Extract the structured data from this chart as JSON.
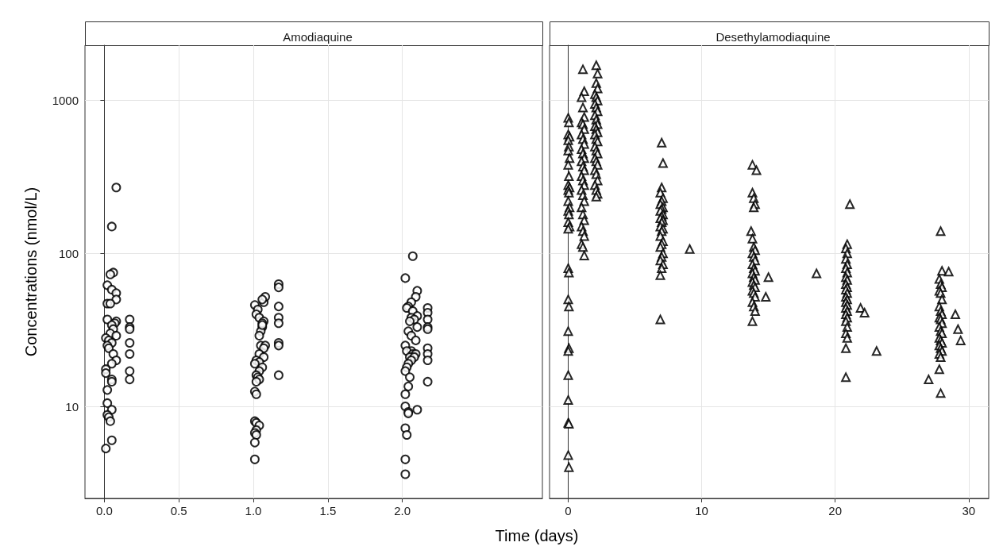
{
  "chart_data": [
    {
      "type": "scatter",
      "title": "Amodiaquine",
      "xlabel": "Time (days)",
      "ylabel": "Concentrations (nmol/L)",
      "marker": "circle",
      "grid": true,
      "log": "y",
      "xlim": [
        -0.13,
        2.94
      ],
      "xticks": [
        {
          "value": 0,
          "label": "0.0"
        },
        {
          "value": 0.5,
          "label": "0.5"
        },
        {
          "value": 1,
          "label": "1.0"
        },
        {
          "value": 1.5,
          "label": "1.5"
        },
        {
          "value": 2,
          "label": "2.0"
        }
      ],
      "ylim": [
        2.5,
        2300
      ],
      "yticks": [
        10,
        100,
        1000
      ],
      "series": [
        {
          "color": "#000000",
          "x": [
            0.08,
            0.05,
            0.06,
            0.04,
            0.02,
            0.05,
            0.08,
            0.08,
            0.02,
            0.04,
            0.02,
            0.08,
            0.07,
            0.05,
            0.06,
            0.04,
            0.08,
            0.01,
            0.03,
            0.05,
            0.02,
            0.03,
            0.06,
            0.08,
            0.05,
            0.01,
            0.01,
            0.05,
            0.05,
            0.02,
            0.02,
            0.05,
            0.02,
            0.03,
            0.04,
            0.05,
            0.01,
            0.17,
            0.17,
            0.17,
            0.17,
            0.17,
            0.17,
            0.17,
            1.01,
            1.03,
            1.02,
            1.04,
            1.06,
            1.05,
            1.07,
            1.08,
            1.06,
            1.07,
            1.06,
            1.06,
            1.04,
            1.05,
            1.08,
            1.07,
            1.04,
            1.07,
            1.02,
            1.04,
            1.01,
            1.06,
            1.04,
            1.02,
            1.03,
            1.04,
            1.02,
            1.01,
            1.02,
            1.01,
            1.02,
            1.04,
            1.02,
            1.01,
            1.02,
            1.01,
            1.01,
            1.17,
            1.17,
            1.17,
            1.17,
            1.17,
            1.17,
            1.17,
            1.17,
            2.07,
            2.02,
            2.1,
            2.09,
            2.06,
            2.04,
            2.03,
            2.07,
            2.1,
            2.06,
            2.08,
            2.05,
            2.1,
            2.04,
            2.06,
            2.09,
            2.02,
            2.06,
            2.03,
            2.07,
            2.09,
            2.05,
            2.08,
            2.06,
            2.04,
            2.03,
            2.02,
            2.05,
            2.04,
            2.02,
            2.02,
            2.1,
            2.04,
            2.04,
            2.02,
            2.03,
            2.02,
            2.02,
            2.17,
            2.17,
            2.17,
            2.17,
            2.17,
            2.17,
            2.17,
            2.17,
            2.17
          ],
          "values": [
            270,
            150,
            75,
            73,
            62,
            58,
            55,
            50,
            47,
            47,
            37,
            36,
            35,
            34,
            32,
            30,
            29,
            28,
            27,
            26,
            25,
            24,
            22,
            20,
            19,
            17.5,
            16.5,
            15,
            14.5,
            12.8,
            10.5,
            9.5,
            8.8,
            8.5,
            8,
            6,
            5.3,
            37,
            33,
            32,
            26,
            22,
            17,
            15,
            46,
            43,
            40,
            38,
            33,
            31,
            48,
            52,
            50,
            36,
            35,
            34,
            29,
            25,
            25,
            24,
            22,
            21,
            20,
            19.5,
            19,
            18,
            17,
            16,
            15.5,
            15,
            14.5,
            12.5,
            12,
            8,
            7.8,
            7.5,
            7,
            6.7,
            6.5,
            5.8,
            4.5,
            63,
            60,
            45,
            38,
            35,
            26,
            25,
            16,
            96,
            69,
            57,
            52,
            48,
            45,
            44,
            42,
            39,
            38,
            37,
            36,
            33,
            31,
            29,
            27,
            25,
            23,
            23,
            22,
            22,
            21,
            21,
            20,
            19,
            18,
            17,
            15.5,
            13.5,
            12,
            10,
            9.5,
            9.2,
            9,
            7.2,
            6.5,
            4.5,
            3.6,
            44,
            41,
            37,
            33,
            32,
            24,
            22,
            20,
            14.5
          ]
        }
      ]
    },
    {
      "type": "scatter",
      "title": "Desethylamodiaquine",
      "marker": "triangle",
      "grid": true,
      "log": "y",
      "tick_labels": "x",
      "xlim": [
        -1.4,
        31.5
      ],
      "xticks": [
        0,
        10,
        20,
        30
      ],
      "ylim": [
        2.5,
        2300
      ],
      "yticks": [
        10,
        100,
        1000
      ],
      "series": [
        {
          "color": "#000000",
          "x": [
            0,
            0.05,
            0,
            0.1,
            0,
            0.05,
            0,
            0.1,
            0,
            0.05,
            0,
            0.1,
            0,
            0.05,
            0,
            0.1,
            0,
            0.05,
            0,
            0.1,
            0,
            0,
            0.05,
            0,
            0.05,
            0,
            0.05,
            0,
            0,
            0,
            0,
            0.05,
            0,
            0.05,
            1.1,
            1.2,
            1,
            1.1,
            1.2,
            1,
            1.1,
            1.2,
            1,
            1.1,
            1.2,
            1,
            1.1,
            1.2,
            1,
            1.1,
            1.2,
            1,
            1.1,
            1.2,
            1,
            1.1,
            1.2,
            1,
            1.1,
            1.2,
            1,
            1.1,
            1.2,
            1,
            1.1,
            1.2,
            2.1,
            2.2,
            2.1,
            2.2,
            2,
            2.1,
            2.2,
            2,
            2.1,
            2.2,
            2,
            2.1,
            2.2,
            2,
            2.1,
            2.2,
            2,
            2.1,
            2.2,
            2,
            2.1,
            2.2,
            2,
            2.1,
            2.2,
            2,
            2.1,
            2.2,
            2,
            2.1,
            2.2,
            2.1,
            7,
            7.1,
            7,
            6.9,
            7.1,
            7,
            6.9,
            7.1,
            7,
            6.9,
            7.1,
            7,
            6.9,
            7.1,
            7,
            6.9,
            7.1,
            7,
            6.9,
            7.1,
            7,
            6.9,
            7.1,
            7,
            6.9,
            7.1,
            7,
            6.9,
            6.9,
            9.1,
            13.8,
            14.1,
            13.8,
            13.9,
            14,
            13.9,
            13.7,
            13.8,
            13.9,
            14,
            13.8,
            13.9,
            14,
            13.8,
            13.9,
            14,
            13.8,
            13.9,
            14,
            13.8,
            13.9,
            14,
            13.8,
            13.9,
            14,
            13.8,
            13.9,
            14,
            13.8,
            15,
            14.8,
            18.6,
            21.1,
            20.9,
            20.8,
            20.9,
            20.8,
            20.9,
            20.8,
            20.9,
            20.8,
            20.9,
            20.8,
            20.9,
            20.8,
            20.9,
            20.8,
            20.9,
            20.8,
            20.9,
            20.8,
            20.9,
            20.8,
            20.9,
            20.8,
            20.9,
            20.8,
            20.9,
            20.8,
            20.8,
            21.9,
            22.2,
            23.1,
            27.9,
            28,
            27.8,
            27.9,
            28,
            27.8,
            27.9,
            28,
            27.8,
            27.9,
            28,
            27.8,
            27.9,
            28,
            27.8,
            27.9,
            28,
            27.8,
            27.9,
            28,
            27.8,
            27.9,
            28,
            27.8,
            27.9,
            27.8,
            27.9,
            27,
            28.5,
            29,
            29.2,
            29.4
          ],
          "values": [
            770,
            720,
            600,
            580,
            550,
            500,
            470,
            420,
            380,
            320,
            280,
            270,
            260,
            250,
            220,
            200,
            190,
            180,
            160,
            150,
            145,
            80,
            75,
            50,
            45,
            31,
            24,
            23,
            16,
            11,
            7.8,
            7.7,
            4.8,
            4,
            1600,
            1150,
            1050,
            900,
            780,
            720,
            700,
            650,
            600,
            560,
            520,
            480,
            450,
            420,
            400,
            370,
            350,
            320,
            300,
            280,
            260,
            240,
            220,
            200,
            180,
            165,
            150,
            140,
            130,
            115,
            110,
            97,
            1700,
            1500,
            1300,
            1200,
            1100,
            1050,
            1000,
            950,
            900,
            850,
            800,
            750,
            700,
            680,
            650,
            620,
            600,
            560,
            540,
            500,
            470,
            450,
            420,
            400,
            380,
            350,
            330,
            300,
            280,
            260,
            245,
            235,
            530,
            390,
            270,
            250,
            230,
            220,
            210,
            200,
            195,
            190,
            180,
            175,
            170,
            165,
            160,
            150,
            145,
            140,
            130,
            120,
            115,
            110,
            100,
            95,
            90,
            85,
            80,
            72,
            37,
            107,
            380,
            350,
            250,
            230,
            210,
            200,
            140,
            125,
            110,
            105,
            100,
            95,
            90,
            85,
            80,
            77,
            74,
            70,
            67,
            65,
            62,
            60,
            57,
            55,
            52,
            48,
            45,
            42,
            36,
            70,
            52,
            74,
            210,
            115,
            108,
            100,
            92,
            85,
            80,
            75,
            70,
            67,
            63,
            60,
            58,
            55,
            52,
            50,
            48,
            46,
            44,
            42,
            40,
            38,
            36,
            33,
            30,
            28,
            24,
            15.5,
            44,
            41,
            23,
            140,
            77,
            68,
            63,
            60,
            57,
            55,
            50,
            45,
            42,
            40,
            38,
            37,
            35,
            33,
            31,
            30,
            28,
            27,
            26,
            25,
            24,
            23,
            22,
            21,
            17.5,
            12.2,
            15,
            76,
            40,
            32,
            27
          ]
        }
      ]
    }
  ]
}
